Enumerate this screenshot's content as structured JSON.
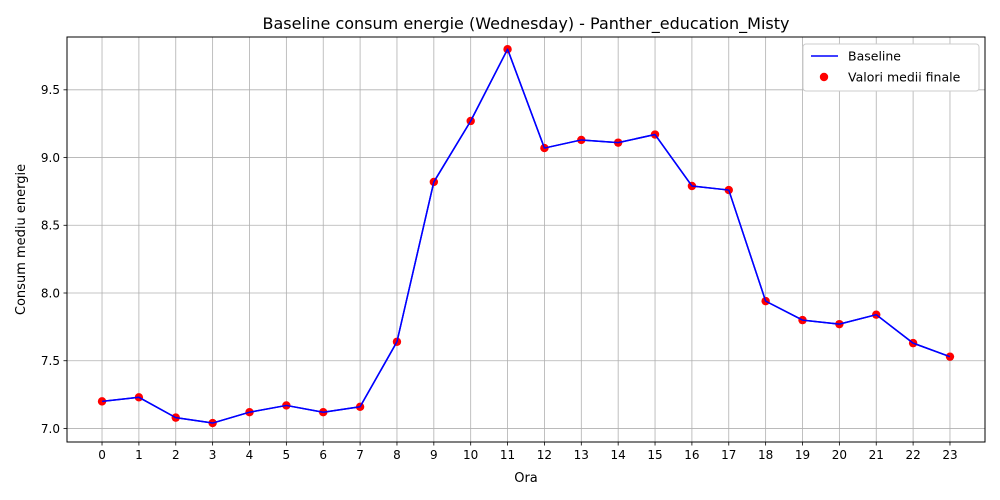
{
  "chart_data": {
    "type": "line",
    "title": "Baseline consum energie (Wednesday) - Panther_education_Misty",
    "xlabel": "Ora",
    "ylabel": "Consum mediu energie",
    "x": [
      0,
      1,
      2,
      3,
      4,
      5,
      6,
      7,
      8,
      9,
      10,
      11,
      12,
      13,
      14,
      15,
      16,
      17,
      18,
      19,
      20,
      21,
      22,
      23
    ],
    "xlim": [
      -0.95,
      23.95
    ],
    "ylim": [
      6.9,
      9.89
    ],
    "yticks": [
      "7.0",
      "7.5",
      "8.0",
      "8.5",
      "9.0",
      "9.5"
    ],
    "grid": true,
    "legend_position": "top-right",
    "series": [
      {
        "name": "Baseline",
        "kind": "line",
        "color": "#0000ff",
        "values": [
          7.2,
          7.23,
          7.08,
          7.04,
          7.12,
          7.17,
          7.12,
          7.16,
          7.64,
          8.82,
          9.27,
          9.8,
          9.07,
          9.13,
          9.11,
          9.17,
          8.79,
          8.76,
          7.94,
          7.8,
          7.77,
          7.84,
          7.63,
          7.53
        ]
      },
      {
        "name": "Valori medii finale",
        "kind": "scatter",
        "color": "#ff0000",
        "values": [
          7.2,
          7.23,
          7.08,
          7.04,
          7.12,
          7.17,
          7.12,
          7.16,
          7.64,
          8.82,
          9.27,
          9.8,
          9.07,
          9.13,
          9.11,
          9.17,
          8.79,
          8.76,
          7.94,
          7.8,
          7.77,
          7.84,
          7.63,
          7.53
        ]
      }
    ]
  }
}
